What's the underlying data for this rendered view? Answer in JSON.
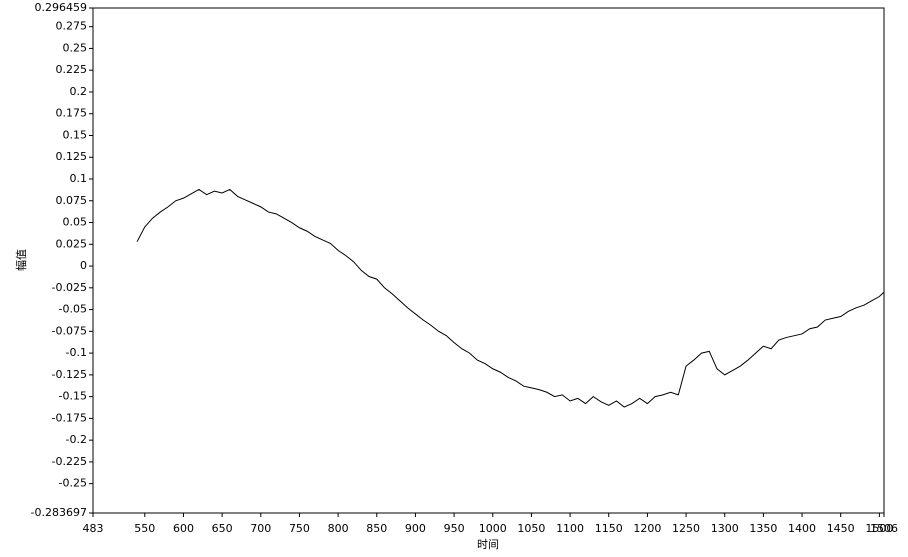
{
  "chart_data": {
    "type": "line",
    "x_label": "时间",
    "y_label": "幅值",
    "xlim": [
      483,
      1506
    ],
    "ylim": [
      -0.283697,
      0.296459
    ],
    "xticks": [
      483,
      550,
      600,
      650,
      700,
      750,
      800,
      850,
      900,
      950,
      1000,
      1050,
      1100,
      1150,
      1200,
      1250,
      1300,
      1350,
      1400,
      1450,
      1500,
      1506
    ],
    "yticks": [
      0.296459,
      0.275,
      0.25,
      0.225,
      0.2,
      0.175,
      0.15,
      0.125,
      0.1,
      0.075,
      0.05,
      0.025,
      0,
      -0.025,
      -0.05,
      -0.075,
      -0.1,
      -0.125,
      -0.15,
      -0.175,
      -0.2,
      -0.225,
      -0.25,
      -0.283697
    ],
    "x": [
      540,
      550,
      560,
      570,
      580,
      590,
      600,
      610,
      620,
      630,
      640,
      650,
      660,
      670,
      680,
      690,
      700,
      710,
      720,
      730,
      740,
      750,
      760,
      770,
      780,
      790,
      800,
      810,
      820,
      830,
      840,
      850,
      860,
      870,
      880,
      890,
      900,
      910,
      920,
      930,
      940,
      950,
      960,
      970,
      980,
      990,
      1000,
      1010,
      1020,
      1030,
      1040,
      1050,
      1060,
      1070,
      1080,
      1090,
      1100,
      1110,
      1120,
      1130,
      1140,
      1150,
      1160,
      1170,
      1180,
      1190,
      1200,
      1210,
      1220,
      1230,
      1240,
      1250,
      1260,
      1270,
      1280,
      1290,
      1300,
      1310,
      1320,
      1330,
      1340,
      1350,
      1360,
      1370,
      1380,
      1390,
      1400,
      1410,
      1420,
      1430,
      1440,
      1450,
      1460,
      1470,
      1480,
      1490,
      1500,
      1506
    ],
    "series": [
      {
        "color": "#000000",
        "values": [
          0.028,
          0.045,
          0.055,
          0.062,
          0.068,
          0.075,
          0.078,
          0.083,
          0.088,
          0.082,
          0.086,
          0.084,
          0.088,
          0.08,
          0.076,
          0.072,
          0.068,
          0.062,
          0.06,
          0.055,
          0.05,
          0.044,
          0.04,
          0.034,
          0.03,
          0.026,
          0.018,
          0.012,
          0.005,
          -0.005,
          -0.012,
          -0.015,
          -0.025,
          -0.032,
          -0.04,
          -0.048,
          -0.055,
          -0.062,
          -0.068,
          -0.075,
          -0.08,
          -0.088,
          -0.095,
          -0.1,
          -0.108,
          -0.112,
          -0.118,
          -0.122,
          -0.128,
          -0.132,
          -0.138,
          -0.14,
          -0.142,
          -0.145,
          -0.15,
          -0.148,
          -0.155,
          -0.152,
          -0.158,
          -0.15,
          -0.156,
          -0.16,
          -0.155,
          -0.162,
          -0.158,
          -0.152,
          -0.158,
          -0.15,
          -0.148,
          -0.145,
          -0.148,
          -0.115,
          -0.108,
          -0.1,
          -0.098,
          -0.118,
          -0.125,
          -0.12,
          -0.115,
          -0.108,
          -0.1,
          -0.092,
          -0.095,
          -0.085,
          -0.082,
          -0.08,
          -0.078,
          -0.072,
          -0.07,
          -0.062,
          -0.06,
          -0.058,
          -0.052,
          -0.048,
          -0.045,
          -0.04,
          -0.035,
          -0.03
        ]
      }
    ]
  }
}
